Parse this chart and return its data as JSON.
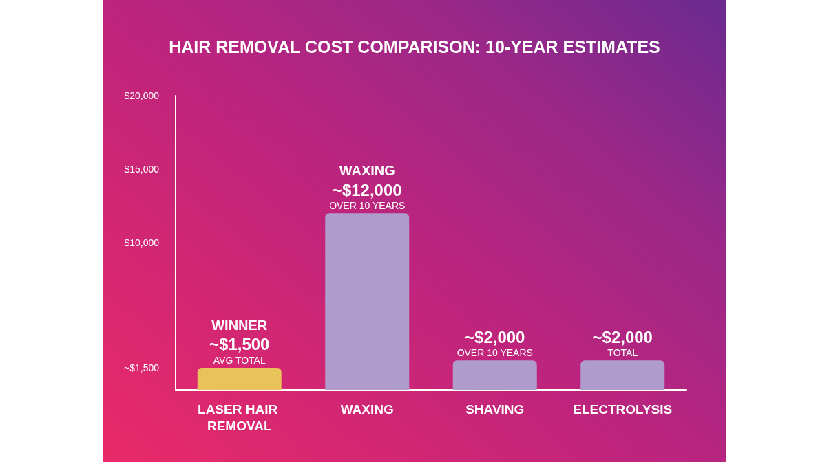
{
  "chart_data": {
    "type": "bar",
    "title": "HAIR REMOVAL COST COMPARISON: 10-YEAR ESTIMATES",
    "categories": [
      "LASER HAIR REMOVAL",
      "WAXING",
      "SHAVING",
      "ELECTROLYSIS"
    ],
    "values": [
      1500,
      12000,
      2000,
      2000
    ],
    "colors": [
      "#e9c25a",
      "#b09ccc",
      "#b09ccc",
      "#b09ccc"
    ],
    "value_labels": [
      "~$1,500",
      "~$12,000",
      "~$2,000",
      "~$2,000"
    ],
    "ylim": [
      0,
      20000
    ],
    "yticks": [
      {
        "value": 1500,
        "label": "~$1,500"
      },
      {
        "value": 10000,
        "label": "$10,000"
      },
      {
        "value": 15000,
        "label": "$15,000"
      },
      {
        "value": 20000,
        "label": "$20,000"
      }
    ],
    "grid": false,
    "annotations": [
      {
        "text": "WINNER",
        "x": "LASER HAIR REMOVAL",
        "y": 1500
      },
      {
        "text": "AVG TOTAL",
        "x": "LASER HAIR REMOVAL",
        "y": 1500
      },
      {
        "text": "WAXING",
        "x": "WAXING",
        "y": 12000
      },
      {
        "text": "OVER 10 YEARS",
        "x": "WAXING",
        "y": 12000
      },
      {
        "text": "OVER 10 YEARS",
        "x": "SHAVING",
        "y": 2000
      },
      {
        "text": "TOTAL",
        "x": "ELECTROLYSIS",
        "y": 2000
      }
    ]
  }
}
